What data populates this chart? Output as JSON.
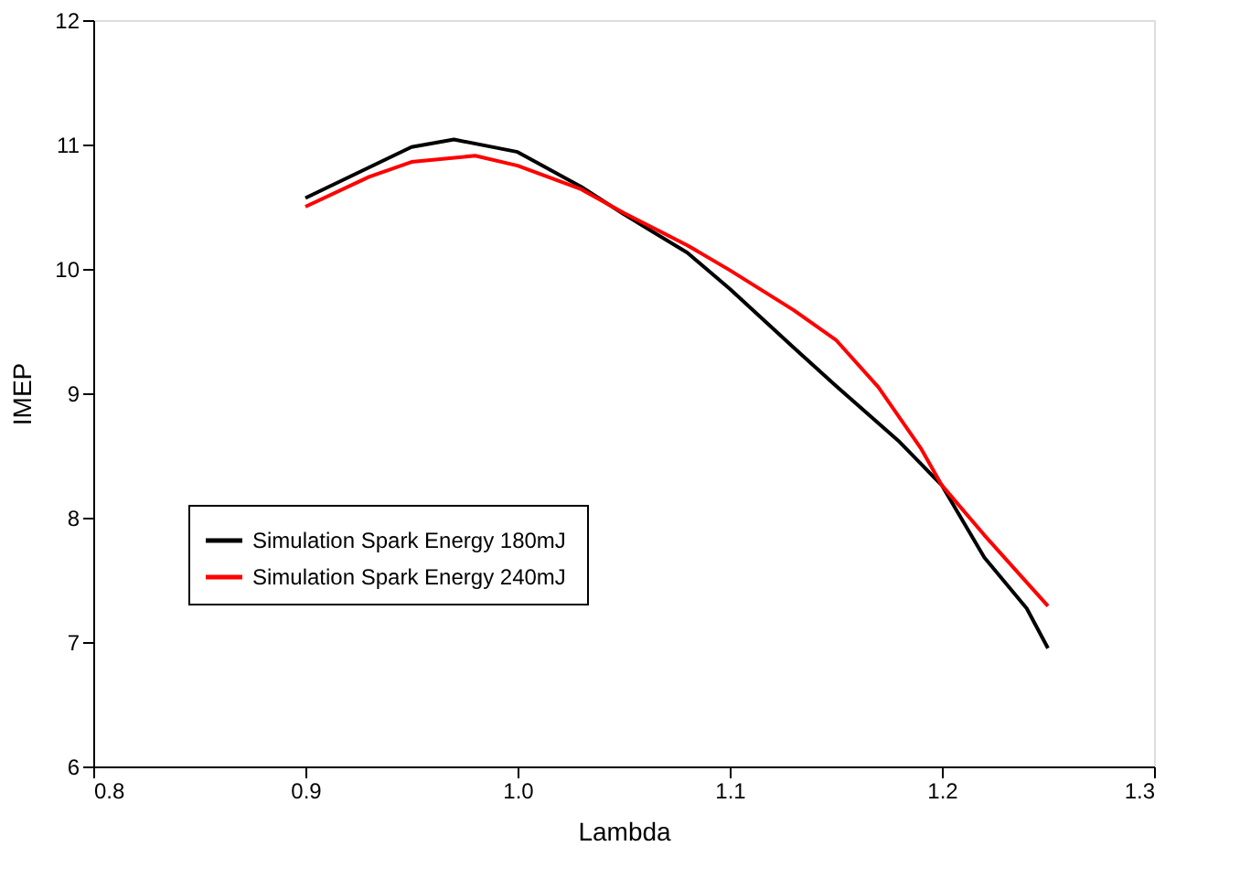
{
  "chart_data": {
    "type": "line",
    "xlabel": "Lambda",
    "ylabel": "IMEP",
    "xlim": [
      0.8,
      1.3
    ],
    "xticks": [
      0.8,
      0.9,
      {
        "value": 1.0,
        "label": "1.0"
      },
      1.1,
      1.2,
      1.3
    ],
    "ylim": [
      6,
      12
    ],
    "yticks": [
      6,
      7,
      8,
      9,
      10,
      11,
      12
    ],
    "grid": false,
    "legend": "bottom left",
    "marker": "none",
    "line_style": "solid",
    "series": [
      {
        "name": "Simulation Spark Energy  180mJ",
        "color": "#000000",
        "x": [
          0.9,
          0.95,
          0.97,
          1.0,
          1.03,
          1.05,
          1.08,
          1.1,
          1.13,
          1.15,
          1.18,
          1.2,
          1.22,
          1.24,
          1.25
        ],
        "values": [
          10.57,
          10.98,
          11.04,
          10.94,
          10.66,
          10.44,
          10.13,
          9.84,
          9.37,
          9.06,
          8.61,
          8.26,
          7.68,
          7.27,
          6.95
        ]
      },
      {
        "name": "Simulation Spark Energy 240mJ",
        "color": "#ff0000",
        "x": [
          0.9,
          0.93,
          0.95,
          0.98,
          1.0,
          1.03,
          1.05,
          1.08,
          1.1,
          1.13,
          1.15,
          1.17,
          1.19,
          1.2,
          1.22,
          1.25
        ],
        "values": [
          10.5,
          10.74,
          10.86,
          10.91,
          10.83,
          10.64,
          10.45,
          10.19,
          9.99,
          9.67,
          9.43,
          9.05,
          8.56,
          8.26,
          7.86,
          7.29
        ]
      }
    ]
  }
}
